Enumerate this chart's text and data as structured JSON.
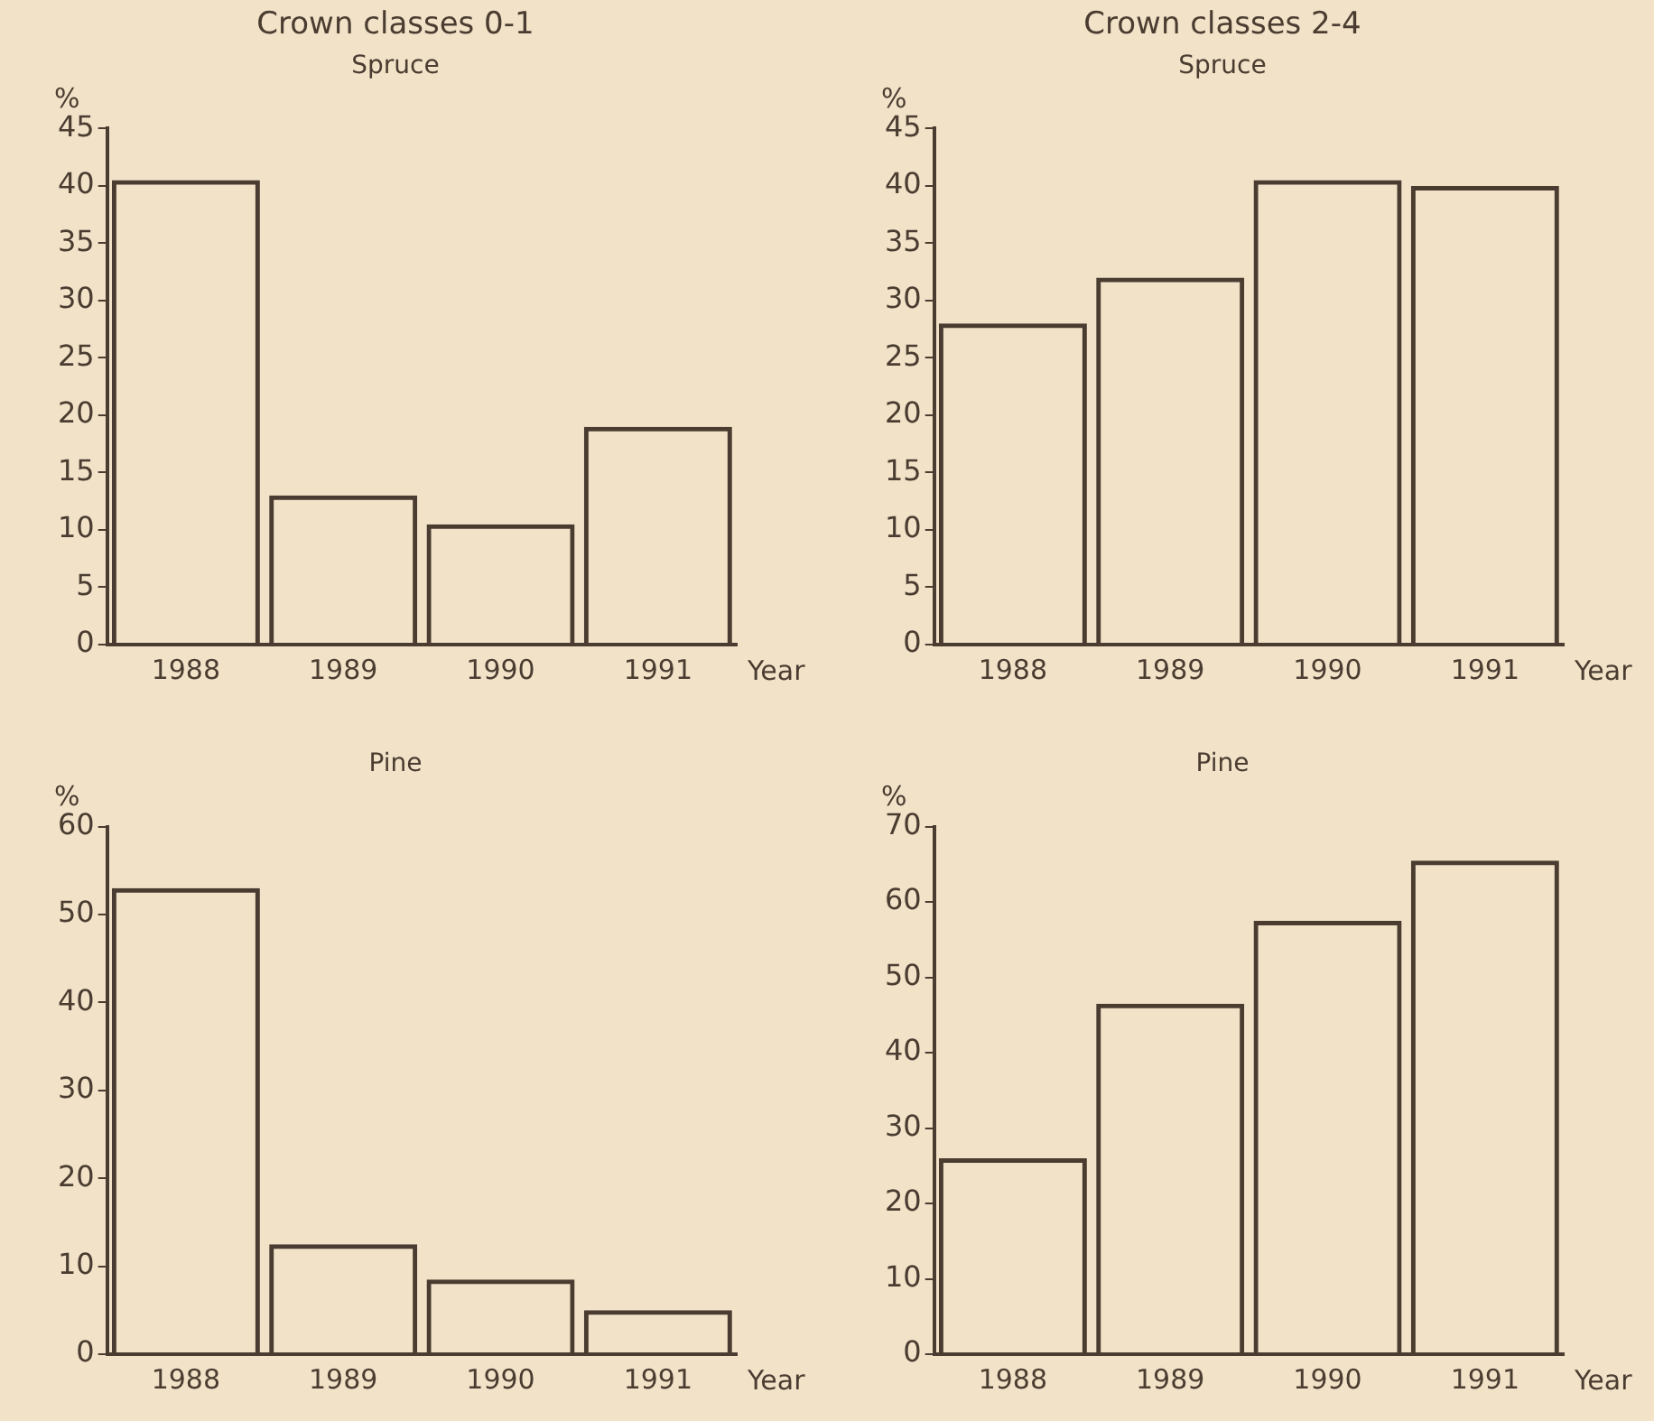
{
  "chart_data": [
    {
      "type": "bar",
      "title": "Crown classes 0-1",
      "subtitle": "Spruce",
      "ylabel": "%",
      "xlabel": "Year",
      "categories": [
        "1988",
        "1989",
        "1990",
        "1991"
      ],
      "values": [
        40.5,
        13,
        10.5,
        19
      ],
      "color": "#4a3c30",
      "ylim": [
        0,
        45
      ],
      "yticks": [
        0,
        5,
        10,
        15,
        20,
        25,
        30,
        35,
        40,
        45
      ],
      "grid": false,
      "legend": false
    },
    {
      "type": "bar",
      "title": "Crown classes 2-4",
      "subtitle": "Spruce",
      "ylabel": "%",
      "xlabel": "Year",
      "categories": [
        "1988",
        "1989",
        "1990",
        "1991"
      ],
      "values": [
        28,
        32,
        40.5,
        40
      ],
      "color": "#4a3c30",
      "ylim": [
        0,
        45
      ],
      "yticks": [
        0,
        5,
        10,
        15,
        20,
        25,
        30,
        35,
        40,
        45
      ],
      "grid": false,
      "legend": false
    },
    {
      "type": "bar",
      "subtitle": "Pine",
      "ylabel": "%",
      "xlabel": "Year",
      "categories": [
        "1988",
        "1989",
        "1990",
        "1991"
      ],
      "values": [
        53,
        12.5,
        8.5,
        5
      ],
      "color": "#4a3c30",
      "ylim": [
        0,
        60
      ],
      "yticks": [
        0,
        10,
        20,
        30,
        40,
        50,
        60
      ],
      "grid": false,
      "legend": false
    },
    {
      "type": "bar",
      "subtitle": "Pine",
      "ylabel": "%",
      "xlabel": "Year",
      "categories": [
        "1988",
        "1989",
        "1990",
        "1991"
      ],
      "values": [
        26,
        46.5,
        57.5,
        65.5
      ],
      "color": "#4a3c30",
      "ylim": [
        0,
        70
      ],
      "yticks": [
        0,
        10,
        20,
        30,
        40,
        50,
        60,
        70
      ],
      "grid": false,
      "legend": false
    }
  ]
}
